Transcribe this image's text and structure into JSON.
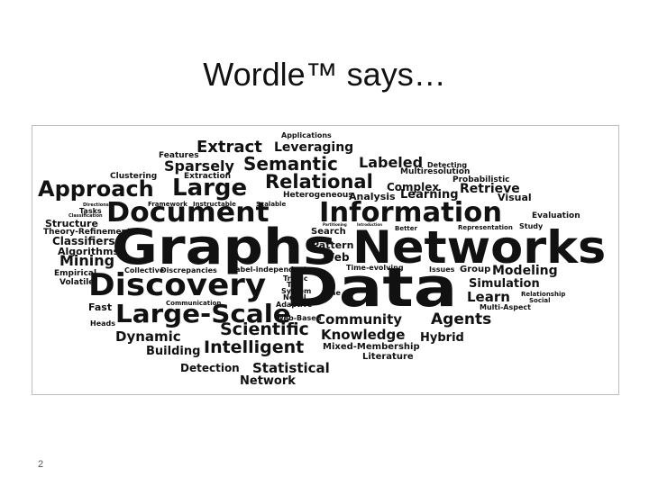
{
  "slide": {
    "title": "Wordle™ says…",
    "number": "2"
  },
  "cloud": {
    "words": [
      "Applications",
      "Leveraging",
      "Extract",
      "Features",
      "Sparsely",
      "Semantic",
      "Labeled",
      "Detecting",
      "Multiresolution",
      "Probabilistic",
      "Clustering",
      "Extraction",
      "Approach",
      "Large",
      "Relational",
      "Complex",
      "Retrieve",
      "Heterogeneous",
      "Analysis",
      "Learning",
      "Visual",
      "Directions",
      "Tasks",
      "Document",
      "Information",
      "Classification",
      "Evaluation",
      "Structure",
      "Theory-Refinement",
      "Classifiers",
      "Algorithms",
      "Framework",
      "Instructable",
      "Scalable",
      "Partitioning",
      "Introduction",
      "Study",
      "Search",
      "Better",
      "Representation",
      "Graphs",
      "Networks",
      "Mining",
      "Pattern",
      "Web",
      "Empirical",
      "Volatile",
      "Discrepancies",
      "Label-independent",
      "Time-evolving",
      "Issues",
      "Group",
      "Modeling",
      "Collective",
      "Discovery",
      "Traffic",
      "Two",
      "System",
      "Novel",
      "One",
      "Data",
      "Simulation",
      "Learn",
      "Relationship",
      "Social",
      "Fast",
      "Communication",
      "Adaptive",
      "Multi-Aspect",
      "Large-Scale",
      "Community",
      "Agents",
      "Heads",
      "Dynamic",
      "Scientific",
      "Web-Based",
      "Knowledge",
      "Hybrid",
      "Building",
      "Intelligent",
      "Mixed-Membership",
      "Literature",
      "Detection",
      "Statistical",
      "Network"
    ]
  }
}
